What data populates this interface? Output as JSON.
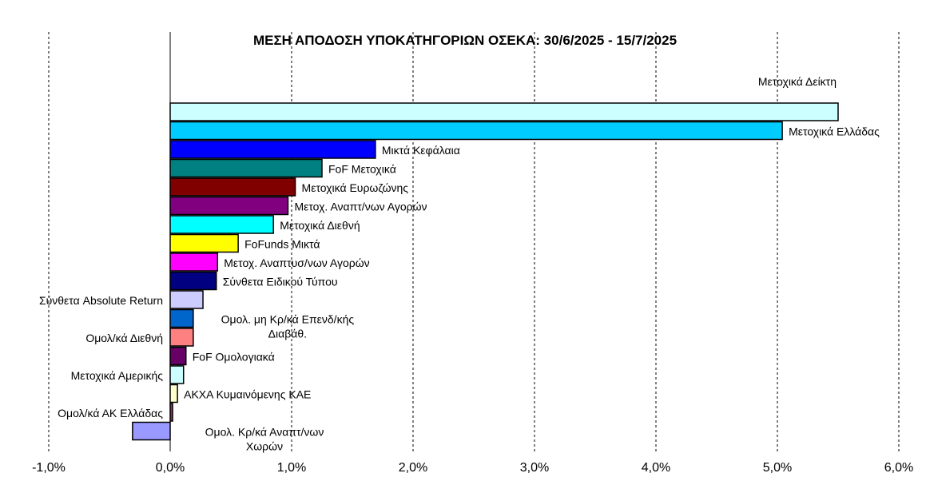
{
  "chart_data": {
    "type": "bar",
    "orientation": "horizontal",
    "title": "ΜΕΣΗ ΑΠΟΔΟΣΗ ΥΠΟΚΑΤΗΓΟΡΙΩΝ ΟΣΕΚΑ: 30/6/2025 - 15/7/2025",
    "xlabel": "",
    "ylabel": "",
    "xlim": [
      -1.0,
      6.0
    ],
    "x_ticks": [
      -1.0,
      0.0,
      1.0,
      2.0,
      3.0,
      4.0,
      5.0,
      6.0
    ],
    "x_tick_labels": [
      "-1,0%",
      "0,0%",
      "1,0%",
      "2,0%",
      "3,0%",
      "4,0%",
      "5,0%",
      "6,0%"
    ],
    "grid": "vertical dashed",
    "legend": "none",
    "categories": [
      "Μετοχικά Δείκτη",
      "Μετοχικά Ελλάδας",
      "Μικτά Κεφάλαια",
      "FoF Μετοχικά",
      "Μετοχικά Ευρωζώνης",
      "Μετοχ. Αναπτ/νων Αγορών",
      "Μετοχικά Διεθνή",
      "FoFunds Μικτά",
      "Μετοχ. Αναπτυσ/νων Αγορών",
      "Σύνθετα Ειδικού Τύπου",
      "Σύνθετα Absolute Return",
      "Ομολ. μη Κρ/κά Επενδ/κής Διαβάθ.",
      "Ομολ/κά Διεθνή",
      "FoF Ομολογιακά",
      "Μετοχικά Αμερικής",
      "ΑΚΧΑ Κυμαινόμενης ΚΑΕ",
      "Ομολ/κά ΑΚ Ελλάδας",
      "Ομολ. Κρ/κά Αναπτ/νων Χωρών"
    ],
    "values": [
      5.5,
      5.04,
      1.69,
      1.25,
      1.03,
      0.97,
      0.85,
      0.56,
      0.39,
      0.38,
      0.27,
      0.19,
      0.19,
      0.13,
      0.11,
      0.06,
      0.02,
      -0.31
    ],
    "colors": [
      "#ccffff",
      "#00ccff",
      "#0000ff",
      "#008080",
      "#800000",
      "#800080",
      "#00ffff",
      "#ffff00",
      "#ff00ff",
      "#000080",
      "#ccccff",
      "#0066cc",
      "#ff8080",
      "#660066",
      "#ccffff",
      "#ffffcc",
      "#993366",
      "#9999ff"
    ],
    "label_lines": [
      [
        "Μετοχικά Δείκτη"
      ],
      [
        "Μετοχικά Ελλάδας"
      ],
      [
        "Μικτά Κεφάλαια"
      ],
      [
        "FoF Μετοχικά"
      ],
      [
        "Μετοχικά Ευρωζώνης"
      ],
      [
        "Μετοχ. Αναπτ/νων Αγορών"
      ],
      [
        "Μετοχικά Διεθνή"
      ],
      [
        "FoFunds Μικτά"
      ],
      [
        "Μετοχ. Αναπτυσ/νων Αγορών"
      ],
      [
        "Σύνθετα Ειδικού Τύπου"
      ],
      [
        "Σύνθετα Absolute Return"
      ],
      [
        "Ομολ. μη Κρ/κά Επενδ/κής",
        "Διαβάθ."
      ],
      [
        "Ομολ/κά Διεθνή"
      ],
      [
        "FoF Ομολογιακά"
      ],
      [
        "Μετοχικά Αμερικής"
      ],
      [
        "ΑΚΧΑ Κυμαινόμενης ΚΑΕ"
      ],
      [
        "Ομολ/κά ΑΚ Ελλάδας"
      ],
      [
        "Ομολ. Κρ/κά Αναπτ/νων",
        "Χωρών"
      ]
    ],
    "label_placement": [
      "above",
      "right",
      "right",
      "right",
      "right",
      "right",
      "right",
      "right",
      "right",
      "right",
      "left",
      "right",
      "left",
      "right",
      "left",
      "right",
      "left",
      "right"
    ]
  }
}
